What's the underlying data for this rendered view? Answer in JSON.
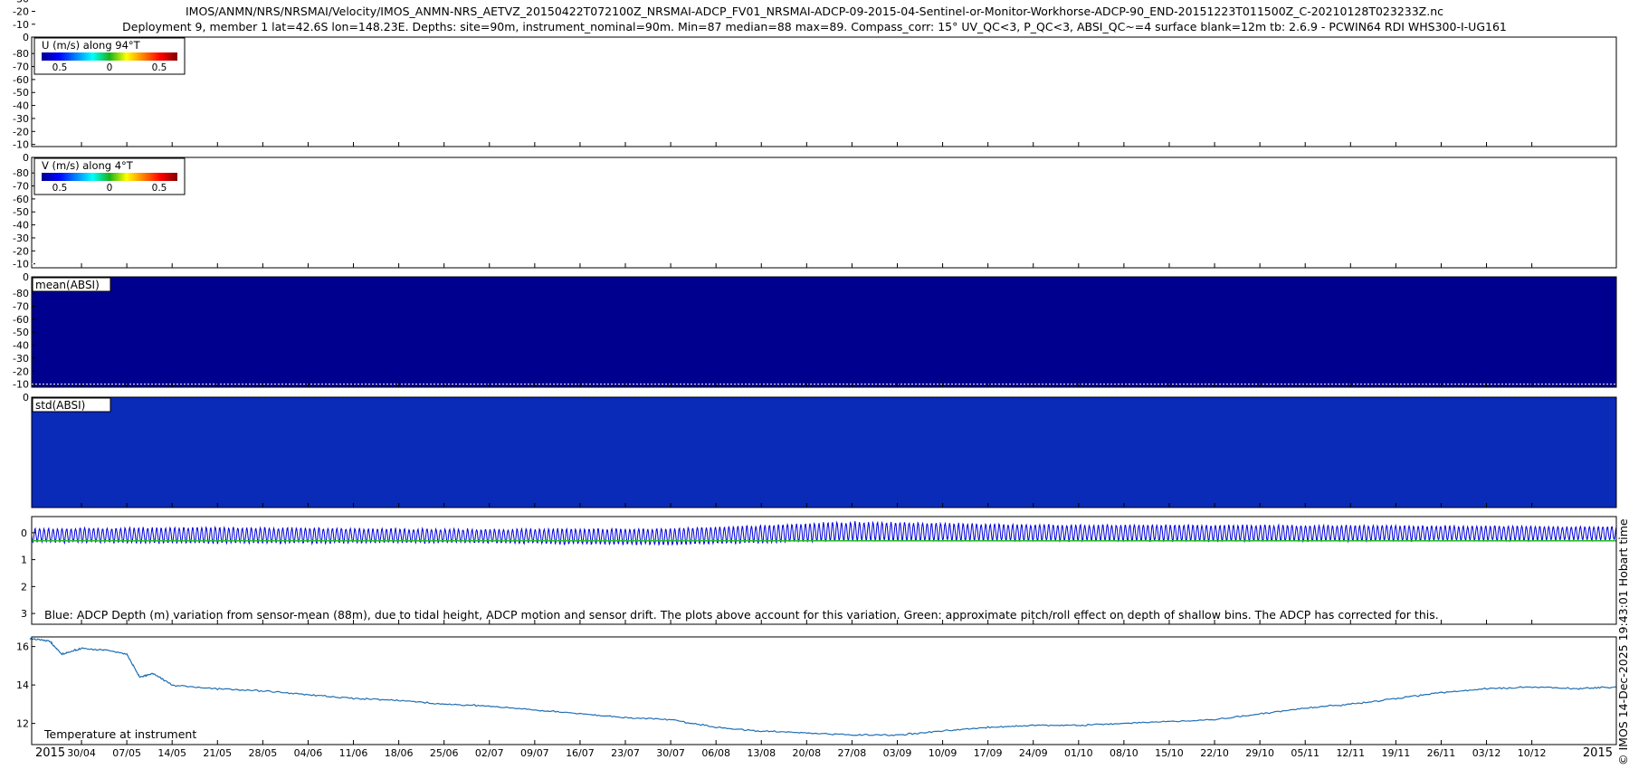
{
  "title_line1": "IMOS/ANMN/NRS/NRSMAI/Velocity/IMOS_ANMN-NRS_AETVZ_20150422T072100Z_NRSMAI-ADCP_FV01_NRSMAI-ADCP-09-2015-04-Sentinel-or-Monitor-Workhorse-ADCP-90_END-20151223T011500Z_C-20210128T023233Z.nc",
  "title_line2": "Deployment 9, member 1 lat=42.6S lon=148.23E. Depths: site=90m, instrument_nominal=90m. Min=87 median=88 max=89. Compass_corr: 15° UV_QC<3, P_QC<3, ABSI_QC~=4 surface blank=12m tb: 2.6.9 - PCWIN64 RDI WHS300-I-UG161",
  "side_label": "© IMOS 14-Dec-2025 19:43:01 Hobart time",
  "colors": {
    "adcp_depth": "#0000dd",
    "pitch_roll": "#22bb22",
    "temperature": "#1f6fb4"
  },
  "depth_ticks": [
    "0",
    "-10",
    "-20",
    "-30",
    "-40",
    "-50",
    "-60",
    "-70",
    "-80"
  ],
  "u_panel": {
    "legend_title": "U (m/s) along 94°T",
    "colorbar_ticks": [
      "0.5",
      "0",
      "0.5"
    ]
  },
  "v_panel": {
    "legend_title": "V (m/s) along 4°T",
    "colorbar_ticks": [
      "0.5",
      "0",
      "0.5"
    ]
  },
  "mean_panel": {
    "label": "mean(ABSI)"
  },
  "std_panel": {
    "label": "std(ABSI)"
  },
  "depth_panel": {
    "yticks": [
      "0",
      "1",
      "2",
      "3"
    ],
    "annotation": "Blue: ADCP Depth (m) variation from sensor-mean (88m), due to tidal height, ADCP motion and sensor drift. The plots above account for this variation. Green: approximate pitch/roll effect on depth of shallow bins. The ADCP has corrected for this."
  },
  "temp_panel": {
    "yticks": [
      "16",
      "14",
      "12"
    ],
    "annotation": "Temperature at instrument"
  },
  "x_axis": {
    "year_left": "2015",
    "year_right": "2015",
    "ticks": [
      "30/04",
      "07/05",
      "14/05",
      "21/05",
      "28/05",
      "04/06",
      "11/06",
      "18/06",
      "25/06",
      "02/07",
      "09/07",
      "16/07",
      "23/07",
      "30/07",
      "06/08",
      "13/08",
      "20/08",
      "27/08",
      "03/09",
      "10/09",
      "17/09",
      "24/09",
      "01/10",
      "08/10",
      "15/10",
      "22/10",
      "29/10",
      "05/11",
      "12/11",
      "19/11",
      "26/11",
      "03/12",
      "10/12"
    ]
  },
  "chart_data": [
    {
      "type": "heatmap",
      "title": "U (m/s) along 94°T",
      "colorbar": [
        "0.5",
        "0",
        "0.5"
      ],
      "ylim": [
        -85,
        0
      ],
      "xlim": [
        "2015-04-22",
        "2015-12-23"
      ]
    },
    {
      "type": "heatmap",
      "title": "V (m/s) along 4°T",
      "colorbar": [
        "0.5",
        "0",
        "0.5"
      ],
      "ylim": [
        -85,
        0
      ],
      "xlim": [
        "2015-04-22",
        "2015-12-23"
      ]
    },
    {
      "type": "heatmap",
      "title": "mean(ABSI)",
      "ylim": [
        -85,
        0
      ],
      "xlim": [
        "2015-04-22",
        "2015-12-23"
      ]
    },
    {
      "type": "heatmap",
      "title": "std(ABSI)",
      "ylim": [
        -85,
        0
      ],
      "xlim": [
        "2015-04-22",
        "2015-12-23"
      ]
    },
    {
      "type": "line",
      "ylim": [
        3.4,
        -0.6
      ],
      "xlim": [
        "2015-04-22",
        "2015-12-23"
      ],
      "series": [
        {
          "name": "Blue: ADCP Depth (m)",
          "x": [
            "2015-04-22",
            "2015-05-21",
            "2015-06-25",
            "2015-07-30",
            "2015-08-27",
            "2015-09-24",
            "2015-10-29",
            "2015-12-23"
          ],
          "mean": [
            0.1,
            0.1,
            0.12,
            0.15,
            -0.05,
            0.0,
            0.02,
            0.02
          ],
          "amplitude": [
            0.25,
            0.3,
            0.25,
            0.3,
            0.35,
            0.3,
            0.3,
            0.25
          ]
        },
        {
          "name": "Green: approximate pitch/roll effect",
          "x": [
            "2015-04-22",
            "2015-12-23"
          ],
          "values": [
            0.3,
            0.3
          ]
        }
      ]
    },
    {
      "type": "line",
      "ylabel": "",
      "ylim": [
        10.9,
        16.5
      ],
      "xlim": [
        "2015-04-22",
        "2015-12-23"
      ],
      "series": [
        {
          "name": "Temperature at instrument",
          "x": [
            "2015-04-22",
            "2015-04-25",
            "2015-04-27",
            "2015-04-30",
            "2015-05-04",
            "2015-05-07",
            "2015-05-09",
            "2015-05-11",
            "2015-05-14",
            "2015-05-21",
            "2015-05-28",
            "2015-06-04",
            "2015-06-11",
            "2015-06-18",
            "2015-06-25",
            "2015-07-02",
            "2015-07-09",
            "2015-07-16",
            "2015-07-23",
            "2015-07-30",
            "2015-08-06",
            "2015-08-13",
            "2015-08-20",
            "2015-08-27",
            "2015-09-03",
            "2015-09-10",
            "2015-09-17",
            "2015-09-24",
            "2015-10-01",
            "2015-10-08",
            "2015-10-15",
            "2015-10-22",
            "2015-10-29",
            "2015-11-05",
            "2015-11-12",
            "2015-11-19",
            "2015-11-26",
            "2015-12-03",
            "2015-12-10",
            "2015-12-17",
            "2015-12-23"
          ],
          "values": [
            16.4,
            16.3,
            15.6,
            15.9,
            15.8,
            15.6,
            14.4,
            14.6,
            14.0,
            13.8,
            13.7,
            13.5,
            13.3,
            13.2,
            13.0,
            12.9,
            12.7,
            12.5,
            12.3,
            12.2,
            11.8,
            11.6,
            11.5,
            11.4,
            11.4,
            11.6,
            11.8,
            11.9,
            11.9,
            12.0,
            12.1,
            12.2,
            12.5,
            12.8,
            13.0,
            13.3,
            13.6,
            13.8,
            13.9,
            13.8,
            13.9
          ]
        }
      ]
    }
  ]
}
